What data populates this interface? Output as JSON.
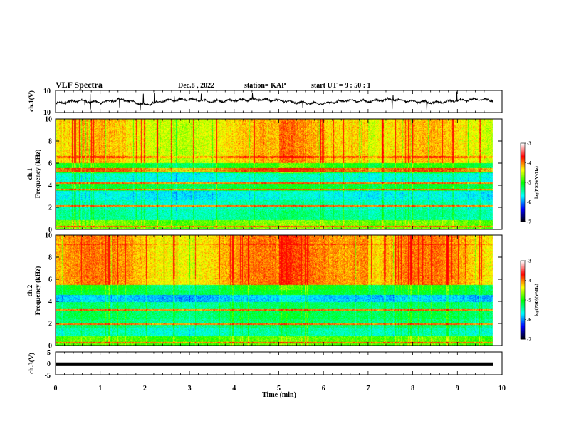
{
  "header": {
    "title": "VLF Spectra",
    "date": "Dec.8  , 2022",
    "station": "station= KAP",
    "start": "start  UT  =   9 : 50 : 1"
  },
  "chart_data": [
    {
      "type": "line",
      "id": "ch1-waveform",
      "ylabel": "ch.1(V)",
      "xlim": [
        0,
        10
      ],
      "ylim": [
        -10,
        10
      ],
      "yticks": [
        "10",
        "-10"
      ],
      "trace": {
        "color": "#000000",
        "description_points": {
          "x": [
            0,
            0.5,
            1,
            1.5,
            2,
            2.5,
            3,
            3.5,
            4,
            4.5,
            5,
            5.5,
            6,
            6.5,
            7,
            7.5,
            8,
            8.5,
            9,
            9.5,
            9.8
          ],
          "y": [
            -2,
            1,
            -1,
            2,
            -3,
            1,
            2,
            0,
            1,
            2,
            1,
            -1,
            -2,
            1,
            0,
            2,
            0,
            -1,
            1,
            2,
            1
          ]
        }
      }
    },
    {
      "type": "heatmap",
      "id": "ch1-spectrogram",
      "ylabel": "ch.1\nFrequency  (kHz)",
      "xlim": [
        0,
        10
      ],
      "ylim": [
        0,
        10
      ],
      "yticks": [
        "0",
        "2",
        "4",
        "6",
        "8",
        "10"
      ],
      "data_end_min": 9.8,
      "bands": [
        {
          "f0": 0.0,
          "f1": 0.8,
          "level": -4.3
        },
        {
          "f0": 0.8,
          "f1": 1.7,
          "level": -5.1
        },
        {
          "f0": 1.7,
          "f1": 2.6,
          "level": -5.2
        },
        {
          "f0": 2.6,
          "f1": 3.5,
          "level": -5.4
        },
        {
          "f0": 3.5,
          "f1": 4.2,
          "level": -4.8
        },
        {
          "f0": 4.2,
          "f1": 5.1,
          "level": -5.3
        },
        {
          "f0": 5.1,
          "f1": 6.0,
          "level": -4.7
        },
        {
          "f0": 6.0,
          "f1": 10.0,
          "level": -3.8
        }
      ],
      "lines_khz": [
        0.2,
        2.1,
        3.6,
        4.2,
        5.3,
        5.5,
        6.5,
        6.6
      ]
    },
    {
      "type": "heatmap",
      "id": "ch2-spectrogram",
      "ylabel": "ch.2\nFrequency  (kHz)",
      "xlim": [
        0,
        10
      ],
      "ylim": [
        0,
        10
      ],
      "yticks": [
        "0",
        "2",
        "4",
        "6",
        "8",
        "10"
      ],
      "data_end_min": 9.8,
      "bands": [
        {
          "f0": 0.0,
          "f1": 0.8,
          "level": -4.4
        },
        {
          "f0": 0.8,
          "f1": 1.6,
          "level": -5.2
        },
        {
          "f0": 1.6,
          "f1": 2.4,
          "level": -5.0
        },
        {
          "f0": 2.4,
          "f1": 3.2,
          "level": -4.9
        },
        {
          "f0": 3.2,
          "f1": 3.9,
          "level": -5.0
        },
        {
          "f0": 3.9,
          "f1": 4.6,
          "level": -5.6
        },
        {
          "f0": 4.6,
          "f1": 5.5,
          "level": -4.8
        },
        {
          "f0": 5.5,
          "f1": 10.0,
          "level": -3.6
        }
      ],
      "lines_khz": [
        0.2,
        1.9,
        3.2,
        6.3,
        9.2
      ]
    },
    {
      "type": "line",
      "id": "ch3-waveform",
      "ylabel": "ch.3(V)",
      "xlim": [
        0,
        10
      ],
      "ylim": [
        -5,
        5
      ],
      "yticks": [
        "5",
        "0",
        "-5"
      ],
      "trace": {
        "color": "#000000",
        "band_y": [
          -1.2,
          0.4
        ],
        "x_end": 9.8
      }
    }
  ],
  "x_axis": {
    "label": "Time  (min)",
    "ticks": [
      "0",
      "1",
      "2",
      "3",
      "4",
      "5",
      "6",
      "7",
      "8",
      "9",
      "10"
    ]
  },
  "colorbars": [
    {
      "id": "cb1",
      "label": "log(PSD)(V²/Hz)",
      "ticks": [
        "-3",
        "-4",
        "-5",
        "-6",
        "-7"
      ],
      "range": [
        -7,
        -3
      ]
    },
    {
      "id": "cb2",
      "label": "log(PSD)(V²/Hz)",
      "ticks": [
        "-3",
        "-4",
        "-5",
        "-6",
        "-7"
      ],
      "range": [
        -7,
        -3
      ]
    }
  ],
  "colormap": [
    "#000000",
    "#0000ff",
    "#00ffff",
    "#00ff00",
    "#ffff00",
    "#ff0000",
    "#ffffff"
  ]
}
